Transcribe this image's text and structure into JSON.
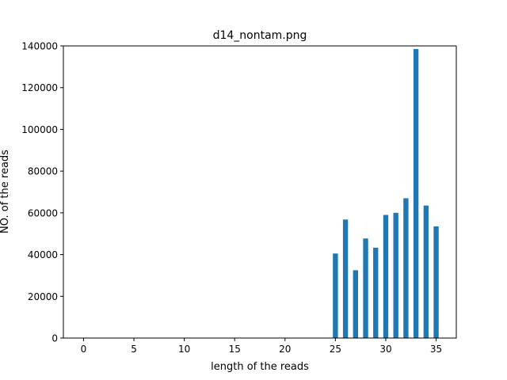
{
  "chart_data": {
    "type": "bar",
    "title": "d14_nontam.png",
    "xlabel": "length of the reads",
    "ylabel": "NO. of the reads",
    "xlim": [
      -2,
      37
    ],
    "ylim": [
      0,
      140000
    ],
    "x_ticks": [
      0,
      5,
      10,
      15,
      20,
      25,
      30,
      35
    ],
    "y_ticks": [
      0,
      20000,
      40000,
      60000,
      80000,
      100000,
      120000,
      140000
    ],
    "x": [
      25,
      26,
      27,
      28,
      29,
      30,
      31,
      32,
      33,
      34,
      35
    ],
    "values": [
      40500,
      56800,
      32500,
      47700,
      43300,
      59000,
      60000,
      67000,
      138500,
      63500,
      53500
    ],
    "bar_width": 0.5,
    "bar_color": "#1f77b4",
    "grid": false,
    "legend": "none"
  }
}
